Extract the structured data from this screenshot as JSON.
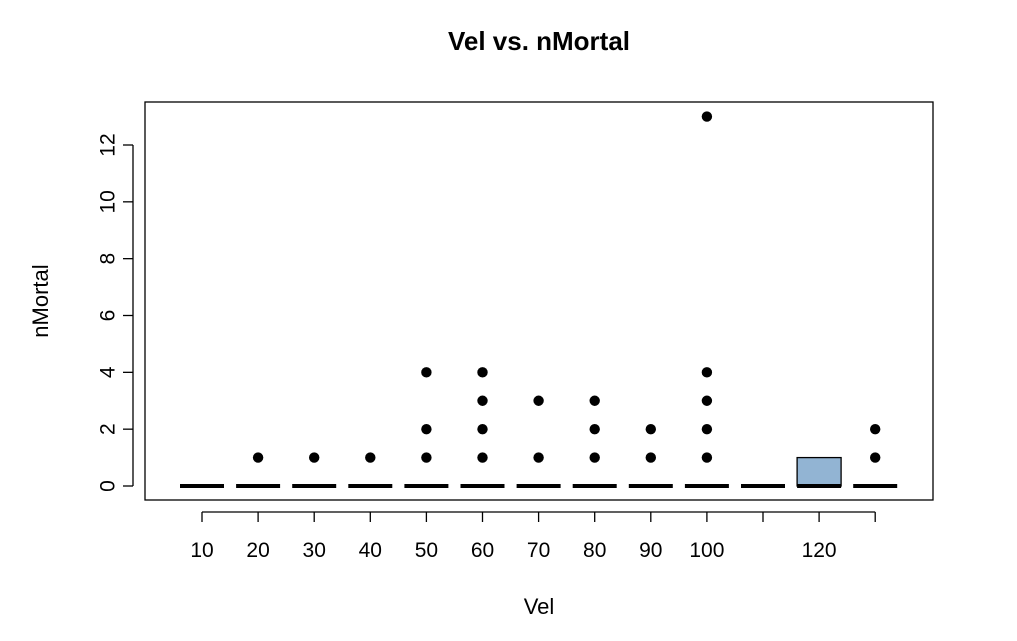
{
  "chart_data": {
    "type": "box",
    "title": "Vel  vs. nMortal",
    "xlabel": "Vel",
    "ylabel": "nMortal",
    "ylim": [
      -0.5,
      13.5
    ],
    "y_ticks": [
      0,
      2,
      4,
      6,
      8,
      10,
      12
    ],
    "grid": false,
    "legend": "none",
    "colors": {
      "box_fill": "#92b4d3",
      "line": "#000000"
    },
    "groups": [
      {
        "label": "10",
        "box": {
          "q1": 0,
          "median": 0,
          "q3": 0
        },
        "outliers": []
      },
      {
        "label": "20",
        "box": {
          "q1": 0,
          "median": 0,
          "q3": 0
        },
        "outliers": [
          1
        ]
      },
      {
        "label": "30",
        "box": {
          "q1": 0,
          "median": 0,
          "q3": 0
        },
        "outliers": [
          1
        ]
      },
      {
        "label": "40",
        "box": {
          "q1": 0,
          "median": 0,
          "q3": 0
        },
        "outliers": [
          1
        ]
      },
      {
        "label": "50",
        "box": {
          "q1": 0,
          "median": 0,
          "q3": 0
        },
        "outliers": [
          1,
          2,
          4
        ]
      },
      {
        "label": "60",
        "box": {
          "q1": 0,
          "median": 0,
          "q3": 0
        },
        "outliers": [
          1,
          2,
          3,
          4
        ]
      },
      {
        "label": "70",
        "box": {
          "q1": 0,
          "median": 0,
          "q3": 0
        },
        "outliers": [
          1,
          3
        ]
      },
      {
        "label": "80",
        "box": {
          "q1": 0,
          "median": 0,
          "q3": 0
        },
        "outliers": [
          1,
          2,
          3
        ]
      },
      {
        "label": "90",
        "box": {
          "q1": 0,
          "median": 0,
          "q3": 0
        },
        "outliers": [
          1,
          2
        ]
      },
      {
        "label": "100",
        "box": {
          "q1": 0,
          "median": 0,
          "q3": 0
        },
        "outliers": [
          1,
          2,
          3,
          4,
          13
        ]
      },
      {
        "label": "",
        "box": {
          "q1": 0,
          "median": 0,
          "q3": 0
        },
        "outliers": []
      },
      {
        "label": "120",
        "box": {
          "q1": 0,
          "median": 0,
          "q3": 1
        },
        "outliers": []
      },
      {
        "label": "",
        "box": {
          "q1": 0,
          "median": 0,
          "q3": 0
        },
        "outliers": [
          1,
          2
        ]
      }
    ]
  }
}
